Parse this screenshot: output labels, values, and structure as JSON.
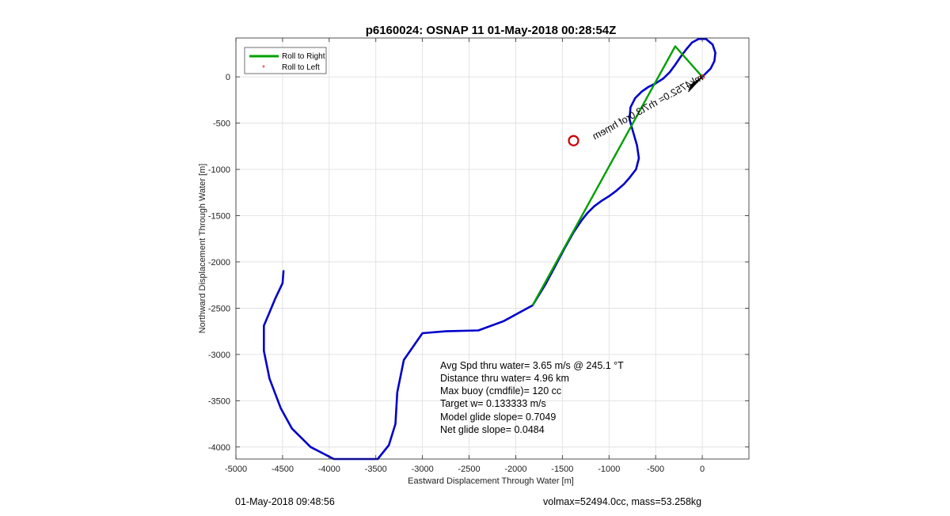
{
  "chart_data": {
    "type": "line",
    "title": "p6160024: OSNAP 11 01-May-2018 00:28:54Z",
    "xlabel": "Eastward Displacement Through Water [m]",
    "ylabel": "Northward Displacement Through Water [m]",
    "xlim": [
      -5000,
      500
    ],
    "ylim": [
      -4130,
      420
    ],
    "xticks": [
      -5000,
      -4500,
      -4000,
      -3500,
      -3000,
      -2500,
      -2000,
      -1500,
      -1000,
      -500,
      0
    ],
    "yticks": [
      0,
      -500,
      -1000,
      -1500,
      -2000,
      -2500,
      -3000,
      -3500,
      -4000
    ],
    "xtick_labels": [
      "-5000",
      "-4500",
      "-4000",
      "-3500",
      "-3000",
      "-2500",
      "-2000",
      "-1500",
      "-1000",
      "-500",
      "0"
    ],
    "ytick_labels": [
      "0",
      "-500",
      "-1000",
      "-1500",
      "-2000",
      "-2500",
      "-3000",
      "-3500",
      "-4000"
    ],
    "grid": true,
    "legend_position": "top-left",
    "series": [
      {
        "name": "Roll to Right",
        "color": "#00a000",
        "x": [
          0,
          -290,
          -1820
        ],
        "y": [
          0,
          330,
          -2470
        ]
      },
      {
        "name": "Roll to Left",
        "color": "#e02020",
        "x": [
          0
        ],
        "y": [
          0
        ]
      },
      {
        "name": "",
        "color": "#0000cc",
        "x": [
          0,
          90,
          130,
          140,
          110,
          40,
          -40,
          -110,
          -170,
          -230,
          -290,
          -350,
          -420,
          -500,
          -580,
          -650,
          -720,
          -770,
          -780,
          -740,
          -700,
          -680,
          -710,
          -780,
          -840,
          -920,
          -1000,
          -1080,
          -1160,
          -1230,
          -1270,
          -1300,
          -1380,
          -1480,
          -1590,
          -1680,
          -1820,
          -2130,
          -2400,
          -2750,
          -3000,
          -3200,
          -3270,
          -3290,
          -3360,
          -3480,
          -3650,
          -3950,
          -4200,
          -4400,
          -4520,
          -4640,
          -4700,
          -4700,
          -4650,
          -4580,
          -4500,
          -4490
        ],
        "y": [
          0,
          90,
          170,
          260,
          350,
          410,
          410,
          370,
          300,
          220,
          130,
          50,
          -20,
          -70,
          -110,
          -160,
          -230,
          -330,
          -460,
          -600,
          -740,
          -880,
          -1000,
          -1090,
          -1160,
          -1230,
          -1290,
          -1340,
          -1400,
          -1470,
          -1520,
          -1560,
          -1680,
          -1860,
          -2070,
          -2240,
          -2470,
          -2640,
          -2740,
          -2750,
          -2770,
          -3060,
          -3410,
          -3750,
          -3980,
          -4130,
          -4130,
          -4130,
          -4000,
          -3800,
          -3580,
          -3260,
          -2960,
          -2690,
          -2570,
          -2400,
          -2230,
          -2100
        ]
      },
      {
        "name": "",
        "color": "#cc0000",
        "x": [
          -1380
        ],
        "y": [
          -690
        ]
      }
    ],
    "annotations": [
      "Avg Spd thru water=  3.65 m/s @ 245.1 °T",
      "Distance thru water=  4.96 km",
      "Max buoy (cmdfile)= 120 cc",
      "Target w= 0.133333 m/s",
      "Model glide slope= 0.7049",
      "Net glide slope= 0.0484"
    ],
    "rotated_label": "ሗǝɯ̣ɥ ɟoɹ0.3ʇ7ɥɹ =0.25ʇ4ʞɯ",
    "rotated_label_plain": "mk4752.0= rh7t3.0rof hṃem"
  },
  "footer": {
    "left": "01-May-2018 09:48:56",
    "right": "volmax=52494.0cc, mass=53.258kg"
  }
}
